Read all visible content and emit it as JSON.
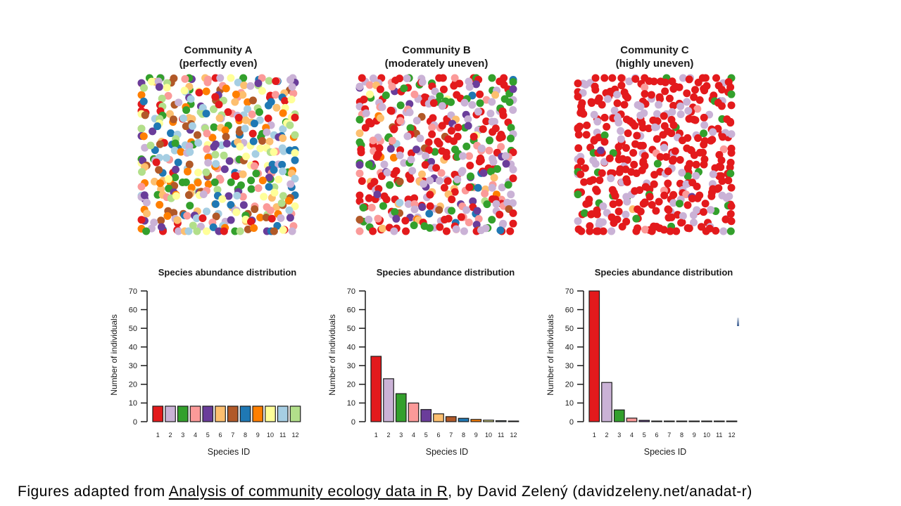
{
  "slide": {
    "caption_prefix": "Figures adapted from ",
    "caption_link": "Analysis of community ecology data in R",
    "caption_suffix": ", by David Zelený (davidzeleny.net/anadat-r)"
  },
  "species_colors": [
    "#E31A1C",
    "#CAB2D6",
    "#33A02C",
    "#FB9A99",
    "#6A3D9A",
    "#FDBF6F",
    "#B15928",
    "#1F78B4",
    "#FF7F00",
    "#FFFF99",
    "#A6CEE3",
    "#B2DF8A"
  ],
  "bar_border_color": "#1a1a1a",
  "panels": [
    {
      "title_line1": "Community A",
      "title_line2": "(perfectly even)",
      "dot_count": 441,
      "seed": 101
    },
    {
      "title_line1": "Community B",
      "title_line2": "(moderately uneven)",
      "dot_count": 441,
      "seed": 202
    },
    {
      "title_line1": "Community C",
      "title_line2": "(highly uneven)",
      "dot_count": 441,
      "seed": 303
    }
  ],
  "chart_data": [
    {
      "type": "bar",
      "panel": "Community A (perfectly even)",
      "title": "Species abundance distribution",
      "xlabel": "Species ID",
      "ylabel": "Number of individuals",
      "ylim": [
        0,
        70
      ],
      "yticks": [
        0,
        10,
        20,
        30,
        40,
        50,
        60,
        70
      ],
      "categories": [
        "1",
        "2",
        "3",
        "4",
        "5",
        "6",
        "7",
        "8",
        "9",
        "10",
        "11",
        "12"
      ],
      "values": [
        8.3,
        8.3,
        8.3,
        8.3,
        8.3,
        8.3,
        8.3,
        8.3,
        8.3,
        8.3,
        8.3,
        8.3
      ],
      "grid": false,
      "legend": false
    },
    {
      "type": "bar",
      "panel": "Community B (moderately uneven)",
      "title": "Species abundance distribution",
      "xlabel": "Species ID",
      "ylabel": "Number of individuals",
      "ylim": [
        0,
        70
      ],
      "yticks": [
        0,
        10,
        20,
        30,
        40,
        50,
        60,
        70
      ],
      "categories": [
        "1",
        "2",
        "3",
        "4",
        "5",
        "6",
        "7",
        "8",
        "9",
        "10",
        "11",
        "12"
      ],
      "values": [
        35,
        23,
        15,
        10,
        6.5,
        4.2,
        2.7,
        1.8,
        1.2,
        0.8,
        0.5,
        0.3
      ],
      "grid": false,
      "legend": false
    },
    {
      "type": "bar",
      "panel": "Community C (highly uneven)",
      "title": "Species abundance distribution",
      "xlabel": "Species ID",
      "ylabel": "Number of individuals",
      "ylim": [
        0,
        70
      ],
      "yticks": [
        0,
        10,
        20,
        30,
        40,
        50,
        60,
        70
      ],
      "categories": [
        "1",
        "2",
        "3",
        "4",
        "5",
        "6",
        "7",
        "8",
        "9",
        "10",
        "11",
        "12"
      ],
      "values": [
        70,
        21,
        6.3,
        1.9,
        0.7,
        0.3,
        0.1,
        0.1,
        0.1,
        0.1,
        0.1,
        0.1
      ],
      "grid": false,
      "legend": false
    }
  ]
}
